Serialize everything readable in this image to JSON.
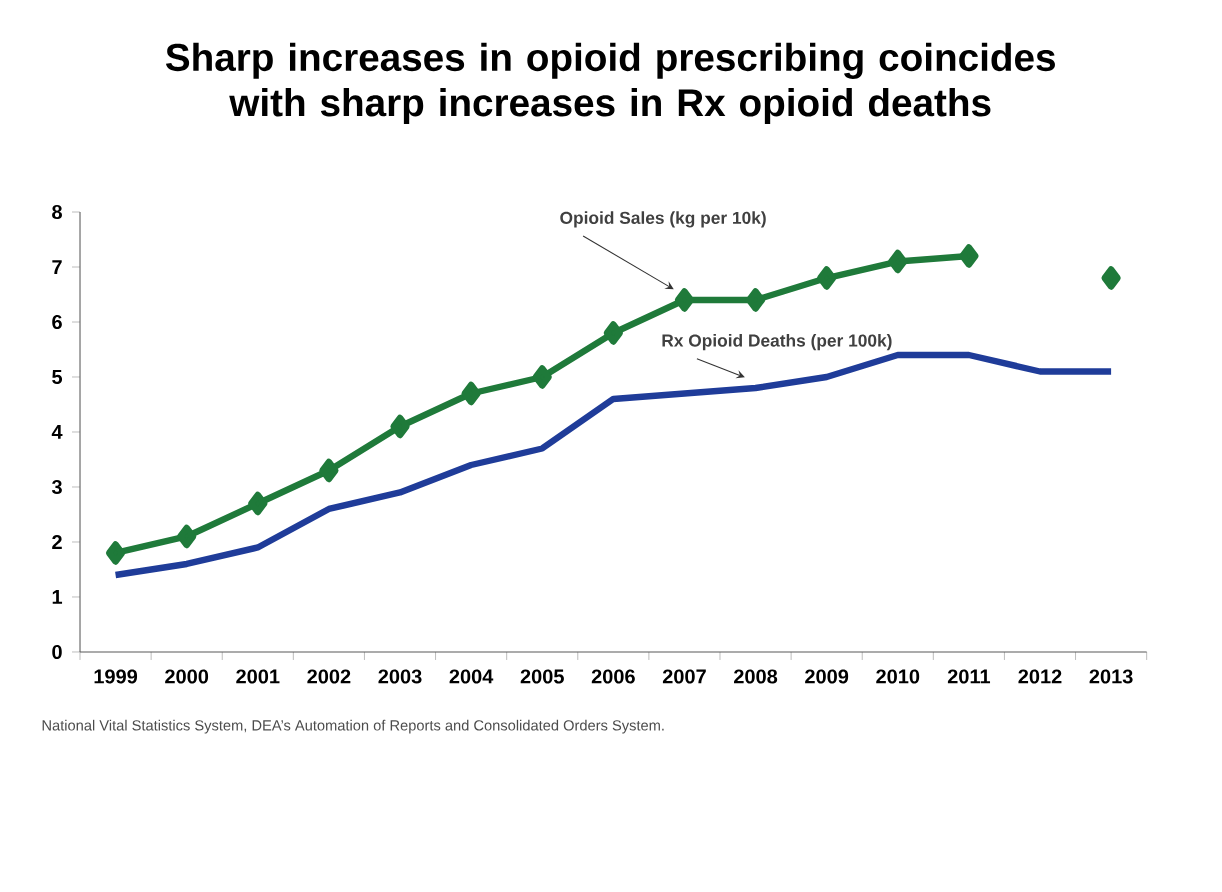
{
  "chart_data": {
    "type": "line",
    "title": "Sharp increases in opioid prescribing coincides with sharp increases in Rx opioid deaths",
    "categories": [
      "1999",
      "2000",
      "2001",
      "2002",
      "2003",
      "2004",
      "2005",
      "2006",
      "2007",
      "2008",
      "2009",
      "2010",
      "2011",
      "2012",
      "2013"
    ],
    "series": [
      {
        "name": "Opioid Sales (kg per 10k)",
        "color": "#1f7a3a",
        "marker": "diamond",
        "values": [
          1.8,
          2.1,
          2.7,
          3.3,
          4.1,
          4.7,
          5.0,
          5.8,
          6.4,
          6.4,
          6.8,
          7.1,
          7.2,
          null,
          6.8
        ]
      },
      {
        "name": "Rx Opioid Deaths (per 100k)",
        "color": "#1f3c99",
        "marker": "none",
        "values": [
          1.4,
          1.6,
          1.9,
          2.6,
          2.9,
          3.4,
          3.7,
          4.6,
          4.7,
          4.8,
          5.0,
          5.4,
          5.4,
          5.1,
          5.1
        ]
      }
    ],
    "ylim": [
      0,
      8
    ],
    "yticks": [
      0,
      1,
      2,
      3,
      4,
      5,
      6,
      7,
      8
    ],
    "grid": false,
    "legend": false,
    "annotations": [
      "National Vital Statistics System, DEA’s Automation of Reports and Consolidated Orders System."
    ]
  }
}
